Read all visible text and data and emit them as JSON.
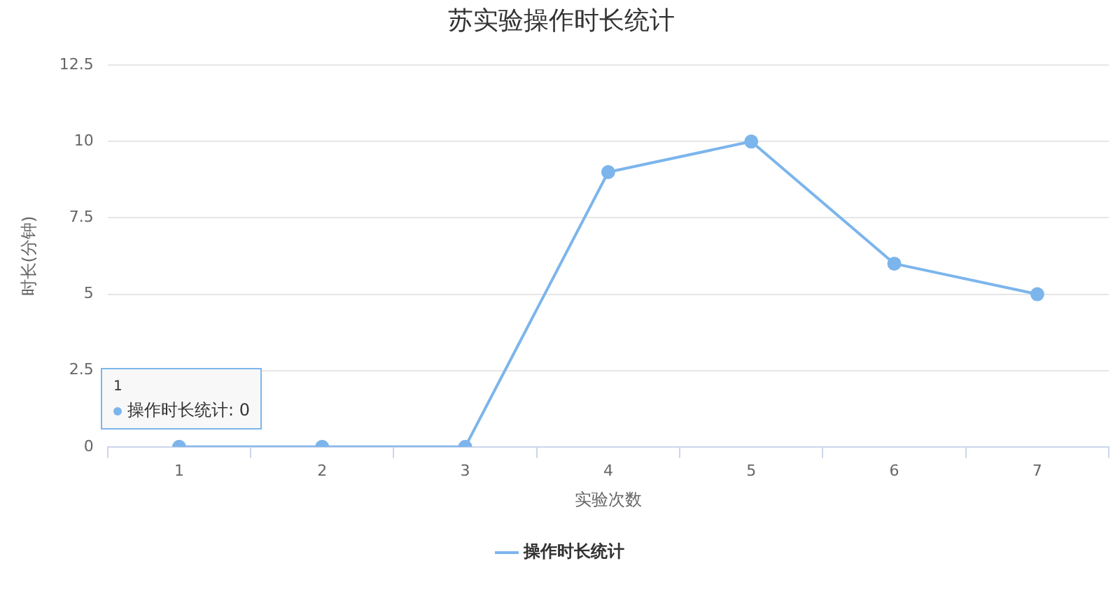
{
  "chart_data": {
    "type": "line",
    "title": "苏实验操作时长统计",
    "xlabel": "实验次数",
    "ylabel": "时长(分钟)",
    "categories": [
      "1",
      "2",
      "3",
      "4",
      "5",
      "6",
      "7"
    ],
    "series": [
      {
        "name": "操作时长统计",
        "color": "#7cb5ec",
        "values": [
          0,
          0,
          0,
          9,
          10,
          6,
          5
        ]
      }
    ],
    "ylim": [
      0,
      12.5
    ],
    "yticks": [
      0,
      2.5,
      5,
      7.5,
      10,
      12.5
    ],
    "grid": "y",
    "legend": "bottom",
    "marker": "circle",
    "line_style": "solid",
    "annotations": [
      "1",
      "操作时长统计: 0"
    ]
  }
}
